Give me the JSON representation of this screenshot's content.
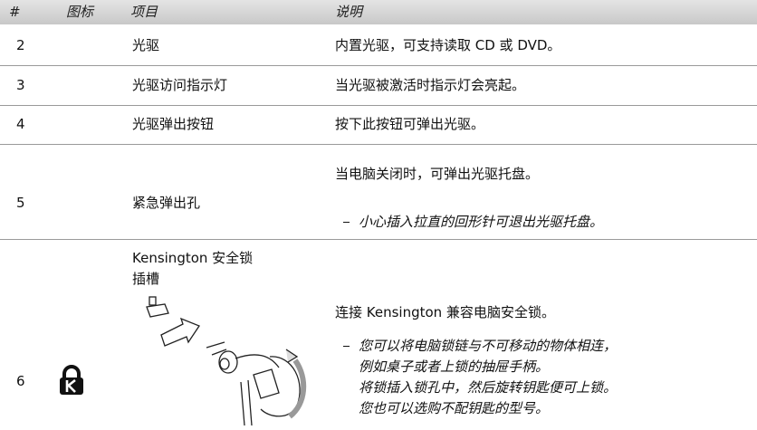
{
  "table": {
    "columns": [
      "#",
      "图标",
      "项目",
      "说明"
    ],
    "rows": [
      {
        "number": "2",
        "item": [
          "光驱"
        ],
        "description": "内置光驱，可支持读取 CD 或 DVD。",
        "notes": []
      },
      {
        "number": "3",
        "item": [
          "光驱访问指示灯"
        ],
        "description": "当光驱被激活时指示灯会亮起。",
        "notes": []
      },
      {
        "number": "4",
        "item": [
          "光驱弹出按钮"
        ],
        "description": "按下此按钮可弹出光驱。",
        "notes": []
      },
      {
        "number": "5",
        "item": [
          "紧急弹出孔"
        ],
        "description": "当电脑关闭时，可弹出光驱托盘。",
        "notes": [
          "小心插入拉直的回形针可退出光驱托盘。"
        ]
      },
      {
        "number": "6",
        "item": [
          "Kensington 安全锁",
          "插槽"
        ],
        "description": "连接 Kensington 兼容电脑安全锁。",
        "notes": [
          "您可以将电脑锁链与不可移动的物体相连，",
          "例如桌子或者上锁的抽屉手柄。",
          "将锁插入锁孔中，然后旋转钥匙便可上锁。",
          "您也可以选购不配钥匙的型号。"
        ]
      }
    ]
  }
}
